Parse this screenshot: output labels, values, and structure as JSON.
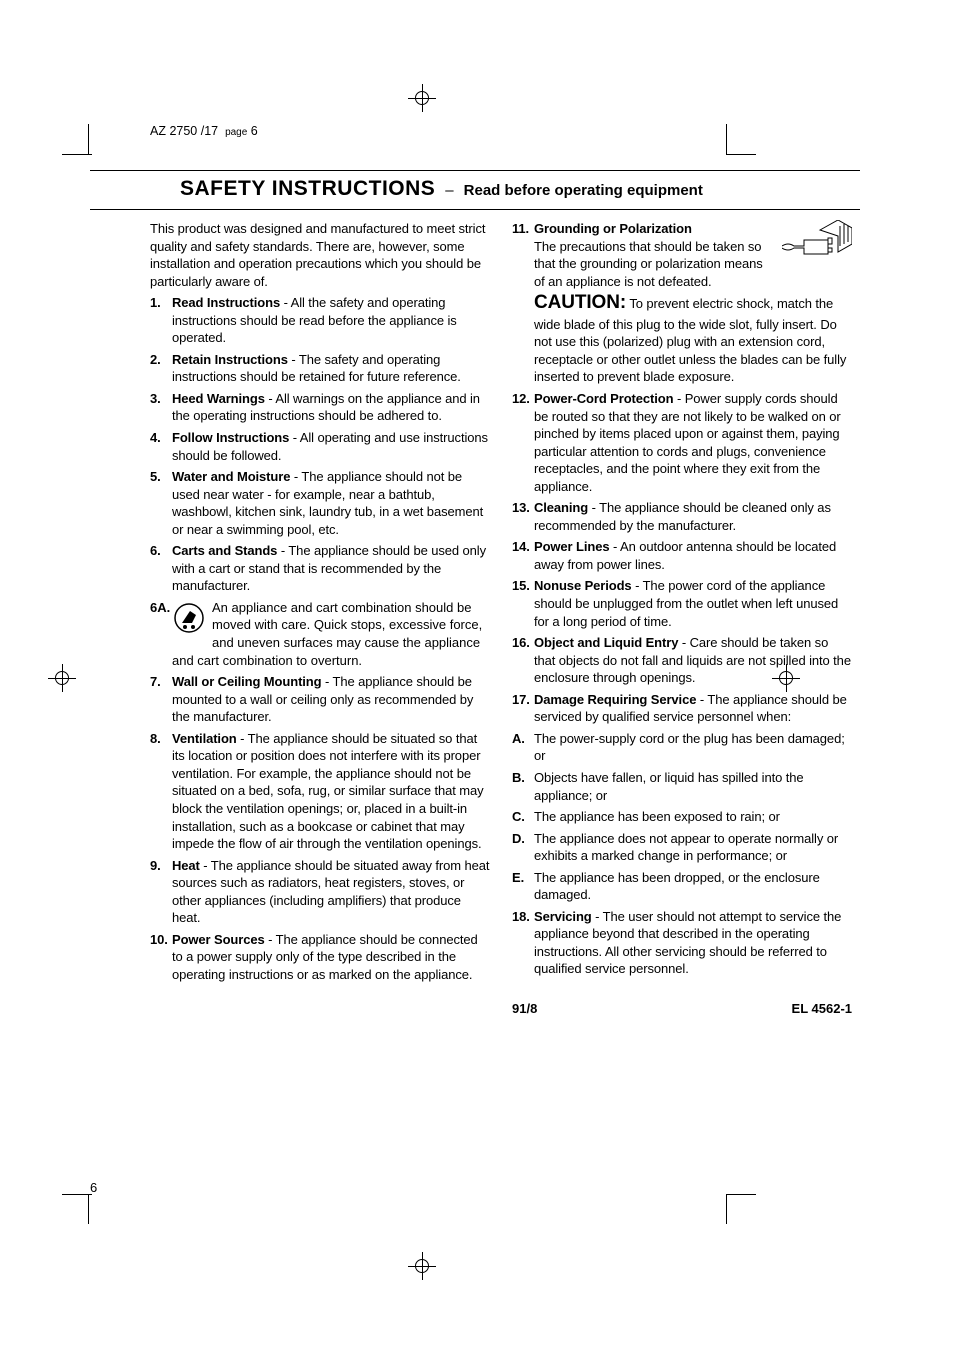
{
  "header": {
    "model": "AZ 2750 /17",
    "page_tag": "page",
    "page_header_num": "6"
  },
  "title": {
    "main": "SAFETY INSTRUCTIONS",
    "sep": "–",
    "sub": "Read before operating equipment"
  },
  "colors": {
    "text": "#000000",
    "background": "#ffffff"
  },
  "intro": "This product was designed and manufactured to meet strict quality and safety standards. There are, however, some installation and operation precautions which you should be particularly aware of.",
  "left_items": [
    {
      "num": "1.",
      "label": "Read Instructions",
      "text": " - All the safety and operating instructions should be read before the appliance is operated."
    },
    {
      "num": "2.",
      "label": "Retain Instructions",
      "text": " - The safety and operating instructions should be retained for future reference."
    },
    {
      "num": "3.",
      "label": "Heed Warnings",
      "text": " - All warnings on the appliance and in the operating instructions should be adhered to."
    },
    {
      "num": "4.",
      "label": "Follow Instructions",
      "text": " - All operating and use instructions should be followed."
    },
    {
      "num": "5.",
      "label": "Water and Moisture",
      "text": " - The appliance should not be used near water - for example, near a bathtub, washbowl, kitchen sink, laundry tub, in a wet basement or near a swimming pool, etc."
    },
    {
      "num": "6.",
      "label": "Carts and Stands",
      "text": " -  The appliance should be used only with a cart or stand that is recommended by the manufacturer."
    }
  ],
  "item_6a": {
    "num": "6A.",
    "text": "An appliance and cart combination should be moved with care. Quick stops, excessive force, and uneven surfaces may cause the appliance and cart combination to overturn."
  },
  "left_items2": [
    {
      "num": "7.",
      "label": "Wall or Ceiling Mounting",
      "text": " - The appliance should be mounted to a wall or ceiling only as recommended by the manufacturer."
    },
    {
      "num": "8.",
      "label": "Ventilation",
      "text": " - The appliance should be situated so that its location or position does not interfere with its proper ventilation. For example, the appliance should not be situated on a bed, sofa, rug, or similar surface that may block the ventilation openings; or, placed in a built-in installation, such as a bookcase or cabinet that may impede the flow of air through the ventilation openings."
    },
    {
      "num": "9.",
      "label": "Heat",
      "text": " - The appliance should be situated away from heat sources such as radiators, heat registers, stoves, or other appliances (including amplifiers) that produce heat."
    },
    {
      "num": "10.",
      "label": "Power Sources",
      "text": " - The appliance should be connected to a power supply only of the type described in the operating instructions or as marked on the appliance."
    }
  ],
  "right_items1": {
    "num": "11.",
    "label": "Grounding or Polarization",
    "lead": "The precautions that should be taken so that the grounding or polarization means of an appliance is not defeated.",
    "caution": "CAUTION:",
    "caution_text": " To prevent electric shock, match the wide blade of this plug to the wide slot, fully insert. Do not use this (polarized) plug with an extension cord, receptacle or other outlet unless the blades can be fully inserted to prevent blade exposure."
  },
  "right_items2": [
    {
      "num": "12.",
      "label": "Power-Cord Protection",
      "text": " - Power supply cords should be routed so that they are not likely to be walked on or pinched by items placed upon or against them, paying particular attention to cords and plugs, convenience receptacles, and the point where they exit from the appliance."
    },
    {
      "num": "13.",
      "label": "Cleaning",
      "text": " - The appliance should be cleaned only as recommended by the manufacturer."
    },
    {
      "num": "14.",
      "label": "Power Lines",
      "text": " - An outdoor antenna should be located away from power lines."
    },
    {
      "num": "15.",
      "label": "Nonuse Periods",
      "text": " - The power cord of the appliance should be unplugged from the outlet when left unused for a long period of time."
    },
    {
      "num": "16.",
      "label": "Object and Liquid Entry",
      "text": " - Care should be taken so that objects do not fall and liquids are not spilled into the enclosure through openings."
    },
    {
      "num": "17.",
      "label": "Damage Requiring Service",
      "text": " - The appliance should be serviced by qualified service personnel when:"
    }
  ],
  "sublist": [
    {
      "num": "A.",
      "text": "The power-supply cord or the plug has been damaged; or"
    },
    {
      "num": "B.",
      "text": "Objects have fallen, or liquid has spilled into the appliance; or"
    },
    {
      "num": "C.",
      "text": "The appliance has been exposed to rain; or"
    },
    {
      "num": "D.",
      "text": "The appliance does not appear to operate normally or exhibits a marked change in performance; or"
    },
    {
      "num": "E.",
      "text": "The appliance has been dropped, or the enclosure damaged."
    }
  ],
  "right_items3": [
    {
      "num": "18.",
      "label": "Servicing",
      "text": " - The user should not attempt to service the appliance beyond that described in the operating instructions. All other servicing should be referred to qualified service personnel."
    }
  ],
  "footer": {
    "left": "91/8",
    "right": "EL 4562-1"
  },
  "page_number": "6"
}
